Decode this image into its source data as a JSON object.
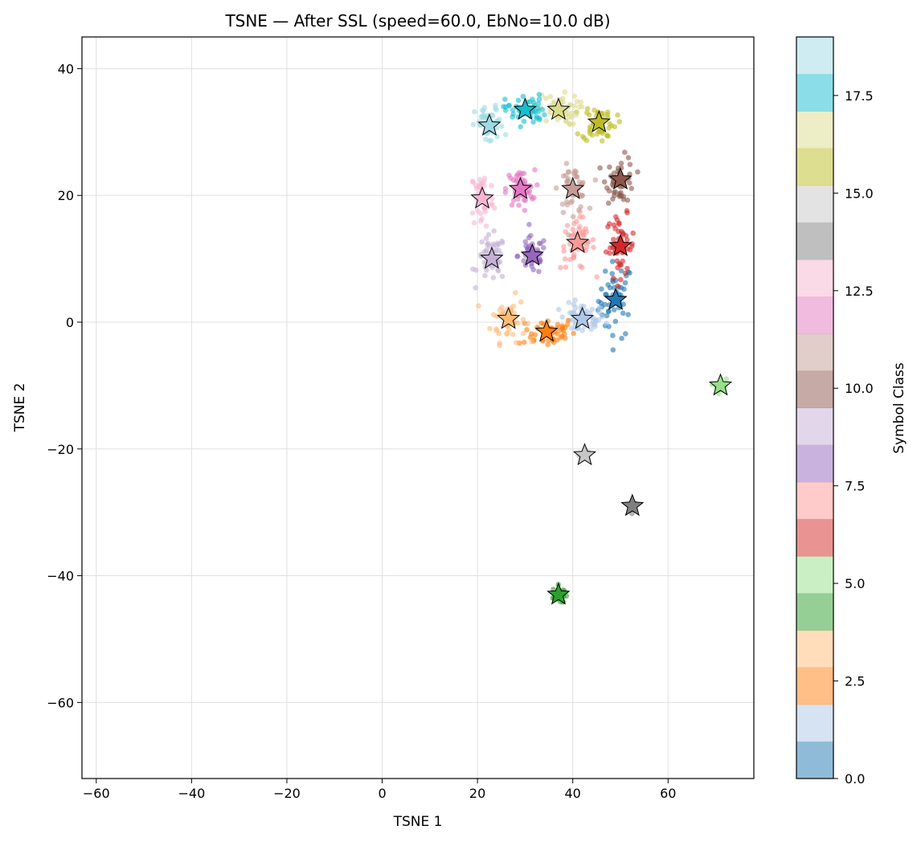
{
  "chart_data": {
    "type": "scatter",
    "title": "TSNE — After SSL (speed=60.0, EbNo=10.0 dB)",
    "xlabel": "TSNE 1",
    "ylabel": "TSNE 2",
    "xlim": [
      -63,
      78
    ],
    "ylim": [
      -72,
      45
    ],
    "xticks": [
      -60,
      -40,
      -20,
      0,
      20,
      40,
      60
    ],
    "yticks": [
      -60,
      -40,
      -20,
      0,
      20,
      40
    ],
    "grid": true,
    "colorbar": {
      "label": "Symbol Class",
      "range": [
        0,
        19
      ],
      "ticks": [
        0.0,
        2.5,
        5.0,
        7.5,
        10.0,
        12.5,
        15.0,
        17.5
      ],
      "tick_labels": [
        "0.0",
        "2.5",
        "5.0",
        "7.5",
        "10.0",
        "12.5",
        "15.0",
        "17.5"
      ],
      "colors": [
        "#1f77b4",
        "#aec7e8",
        "#ff7f0e",
        "#ffbb78",
        "#2ca02c",
        "#98df8a",
        "#d62728",
        "#ff9896",
        "#9467bd",
        "#c5b0d5",
        "#8c564b",
        "#c49c94",
        "#e377c2",
        "#f7b6d2",
        "#7f7f7f",
        "#c7c7c7",
        "#bcbd22",
        "#dbdb8d",
        "#17becf",
        "#9edae5"
      ]
    },
    "clusters": [
      {
        "class": 0,
        "centroid": [
          49.0,
          3.5
        ],
        "spread": [
          3.0,
          5.0
        ]
      },
      {
        "class": 1,
        "centroid": [
          42.0,
          0.5
        ],
        "spread": [
          4.0,
          2.0
        ]
      },
      {
        "class": 2,
        "centroid": [
          34.5,
          -1.5
        ],
        "spread": [
          5.0,
          2.0
        ]
      },
      {
        "class": 3,
        "centroid": [
          26.5,
          0.5
        ],
        "spread": [
          3.0,
          3.0
        ]
      },
      {
        "class": 4,
        "centroid": [
          37.0,
          -43.0
        ],
        "spread": [
          1.0,
          1.2
        ]
      },
      {
        "class": 5,
        "centroid": [
          71.0,
          -10.0
        ],
        "spread": [
          1.0,
          1.0
        ]
      },
      {
        "class": 6,
        "centroid": [
          50.0,
          12.0
        ],
        "spread": [
          2.5,
          4.0
        ]
      },
      {
        "class": 7,
        "centroid": [
          41.0,
          12.5
        ],
        "spread": [
          3.0,
          3.5
        ]
      },
      {
        "class": 8,
        "centroid": [
          31.5,
          10.5
        ],
        "spread": [
          2.5,
          2.5
        ]
      },
      {
        "class": 9,
        "centroid": [
          23.0,
          10.0
        ],
        "spread": [
          2.5,
          3.0
        ]
      },
      {
        "class": 10,
        "centroid": [
          50.0,
          22.5
        ],
        "spread": [
          2.5,
          3.0
        ]
      },
      {
        "class": 11,
        "centroid": [
          40.0,
          21.0
        ],
        "spread": [
          2.5,
          3.0
        ]
      },
      {
        "class": 12,
        "centroid": [
          29.0,
          21.0
        ],
        "spread": [
          2.5,
          2.5
        ]
      },
      {
        "class": 13,
        "centroid": [
          21.0,
          19.5
        ],
        "spread": [
          2.0,
          4.0
        ]
      },
      {
        "class": 14,
        "centroid": [
          52.5,
          -29.0
        ],
        "spread": [
          0.7,
          0.7
        ]
      },
      {
        "class": 15,
        "centroid": [
          42.5,
          -21.0
        ],
        "spread": [
          0.8,
          0.8
        ]
      },
      {
        "class": 16,
        "centroid": [
          45.5,
          31.5
        ],
        "spread": [
          3.0,
          2.5
        ]
      },
      {
        "class": 17,
        "centroid": [
          37.0,
          33.5
        ],
        "spread": [
          3.5,
          2.0
        ]
      },
      {
        "class": 18,
        "centroid": [
          30.0,
          33.5
        ],
        "spread": [
          3.5,
          2.0
        ]
      },
      {
        "class": 19,
        "centroid": [
          22.5,
          31.0
        ],
        "spread": [
          2.5,
          2.5
        ]
      }
    ]
  }
}
